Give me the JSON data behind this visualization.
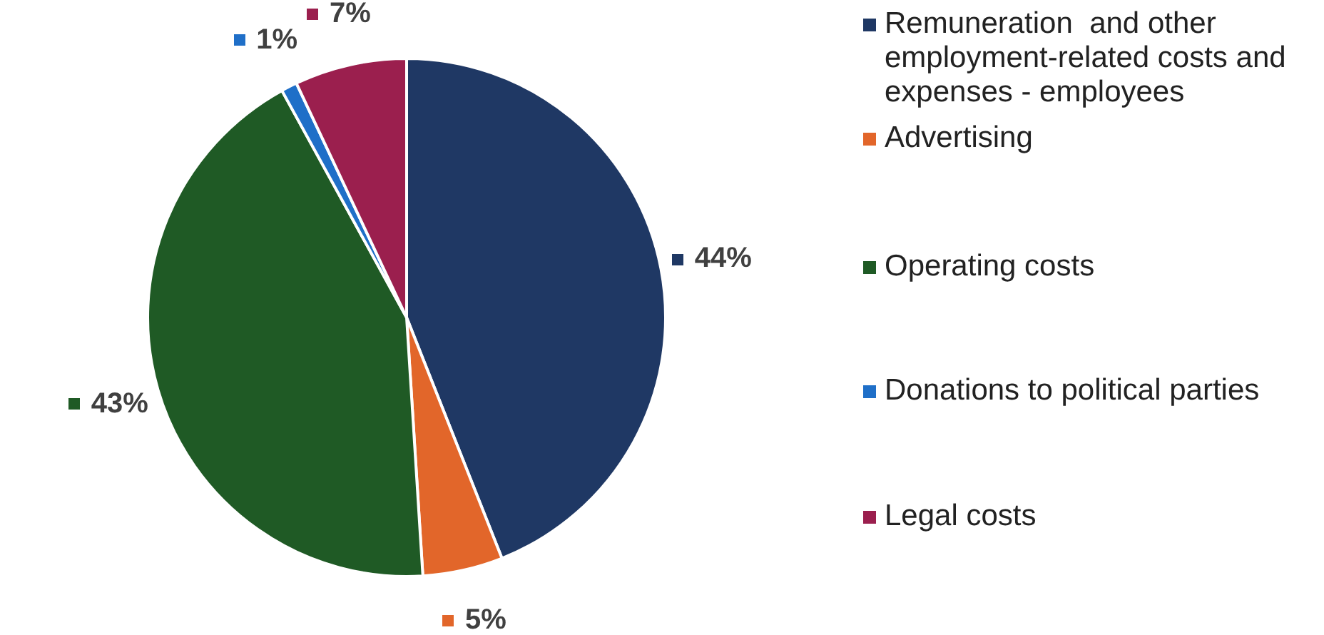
{
  "chart_data": {
    "type": "pie",
    "categories": [
      "Remuneration  and other employment-related costs and expenses - employees",
      "Advertising",
      "Operating costs",
      "Donations to political parties",
      "Legal costs"
    ],
    "values": [
      44,
      5,
      43,
      1,
      7
    ],
    "value_labels": [
      "44%",
      "5%",
      "43%",
      "1%",
      "7%"
    ],
    "colors": [
      "#1f3864",
      "#e2662a",
      "#1f5a25",
      "#1f6fc8",
      "#9b1f4e"
    ],
    "legend": "right"
  }
}
